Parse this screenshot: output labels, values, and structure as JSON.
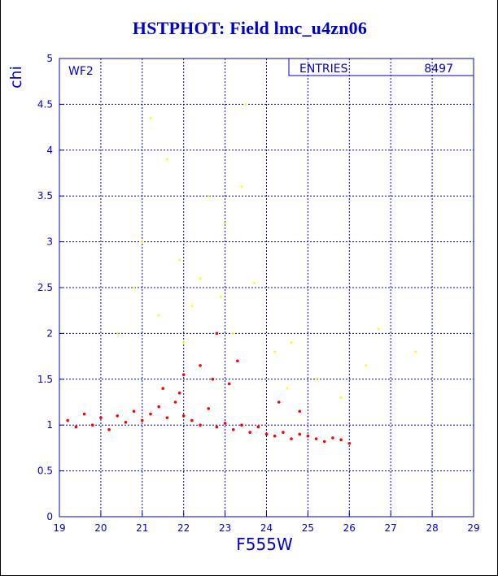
{
  "chart_data": {
    "type": "scatter",
    "title": "HSTPHOT: Field lmc_u4zn06",
    "xlabel": "F555W",
    "ylabel": "chi",
    "panel_label": "WF2",
    "stats_box": {
      "label": "ENTRIES",
      "value": "8497"
    },
    "xlim": [
      19,
      29
    ],
    "ylim": [
      0,
      5
    ],
    "xticks": [
      "19",
      "20",
      "21",
      "22",
      "23",
      "24",
      "25",
      "26",
      "27",
      "28",
      "29"
    ],
    "yticks": [
      "0",
      "0.5",
      "1",
      "1.5",
      "2",
      "2.5",
      "3",
      "3.5",
      "4",
      "4.5",
      "5"
    ],
    "grid": true,
    "colors": {
      "title": "#0000cc",
      "axes": "#0000cc",
      "grid": "#0000cc",
      "good_points": "#ff0000",
      "poor_points": "#ffff00"
    },
    "series": [
      {
        "color": "#ff0000",
        "values": [
          [
            19.2,
            1.05
          ],
          [
            19.4,
            0.98
          ],
          [
            19.6,
            1.12
          ],
          [
            19.8,
            1.0
          ],
          [
            20.0,
            1.08
          ],
          [
            20.2,
            0.95
          ],
          [
            20.4,
            1.1
          ],
          [
            20.6,
            1.03
          ],
          [
            20.8,
            1.15
          ],
          [
            21.0,
            1.05
          ],
          [
            21.2,
            1.12
          ],
          [
            21.4,
            1.2
          ],
          [
            21.6,
            1.08
          ],
          [
            21.8,
            1.25
          ],
          [
            22.0,
            1.1
          ],
          [
            22.2,
            1.05
          ],
          [
            22.4,
            1.0
          ],
          [
            22.6,
            1.18
          ],
          [
            22.8,
            0.98
          ],
          [
            23.0,
            1.02
          ],
          [
            23.2,
            0.95
          ],
          [
            23.4,
            1.0
          ],
          [
            23.6,
            0.92
          ],
          [
            23.8,
            0.98
          ],
          [
            24.0,
            0.9
          ],
          [
            24.2,
            0.88
          ],
          [
            24.4,
            0.92
          ],
          [
            24.6,
            0.85
          ],
          [
            24.8,
            0.9
          ],
          [
            25.0,
            0.88
          ],
          [
            25.2,
            0.85
          ],
          [
            25.4,
            0.82
          ],
          [
            25.6,
            0.86
          ],
          [
            25.8,
            0.84
          ],
          [
            26.0,
            0.8
          ],
          [
            21.5,
            1.4
          ],
          [
            22.0,
            1.55
          ],
          [
            22.4,
            1.65
          ],
          [
            22.7,
            1.5
          ],
          [
            23.1,
            1.45
          ],
          [
            23.3,
            1.7
          ],
          [
            22.8,
            2.0
          ],
          [
            21.9,
            1.35
          ],
          [
            24.3,
            1.25
          ],
          [
            24.8,
            1.15
          ]
        ]
      },
      {
        "color": "#ffff00",
        "values": [
          [
            21.2,
            4.35
          ],
          [
            21.6,
            3.9
          ],
          [
            21.9,
            2.8
          ],
          [
            22.2,
            2.3
          ],
          [
            22.4,
            2.6
          ],
          [
            22.6,
            3.5
          ],
          [
            22.9,
            2.4
          ],
          [
            23.2,
            2.0
          ],
          [
            23.4,
            3.6
          ],
          [
            23.7,
            2.55
          ],
          [
            24.2,
            1.8
          ],
          [
            24.6,
            1.9
          ],
          [
            25.2,
            1.5
          ],
          [
            25.8,
            1.3
          ],
          [
            26.4,
            1.65
          ],
          [
            26.7,
            2.05
          ],
          [
            27.6,
            1.8
          ],
          [
            21.0,
            3.0
          ],
          [
            20.8,
            2.5
          ],
          [
            22.0,
            1.9
          ],
          [
            23.0,
            3.2
          ],
          [
            23.5,
            4.5
          ],
          [
            20.4,
            2.0
          ],
          [
            21.4,
            2.2
          ],
          [
            24.5,
            1.4
          ]
        ]
      }
    ]
  }
}
